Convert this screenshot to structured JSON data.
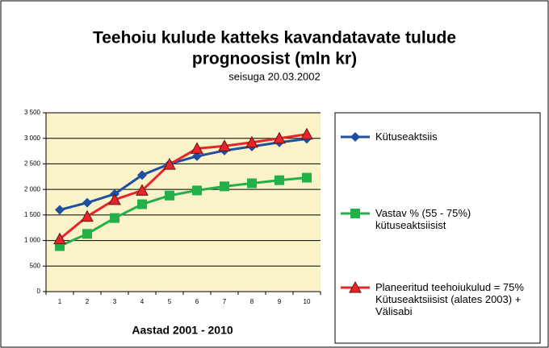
{
  "chart_data": {
    "type": "line",
    "title": "Teehoiu kulude katteks kavandatavate tulude",
    "title_line2": "prognoosist  (mln kr)",
    "subtitle": "seisuga 20.03.2002",
    "x_label": "Aastad 2001 - 2010",
    "categories": [
      "1",
      "2",
      "3",
      "4",
      "5",
      "6",
      "7",
      "8",
      "9",
      "10"
    ],
    "series": [
      {
        "name": "Kütuseaktsiis",
        "color": "#1f4fa0",
        "marker": "diamond",
        "values": [
          1600,
          1740,
          1910,
          2280,
          2500,
          2650,
          2760,
          2840,
          2920,
          2990
        ]
      },
      {
        "name": "Vastav % (55 - 75%) kütuseaktsiisist",
        "color": "#22b04a",
        "marker": "square",
        "values": [
          890,
          1130,
          1440,
          1710,
          1880,
          1980,
          2060,
          2120,
          2180,
          2230
        ]
      },
      {
        "name": "Planeeritud teehoiukulud = 75% Kütuseaktsiisist (alates 2003) + Välisabi",
        "color": "#e8232a",
        "marker": "triangle",
        "values": [
          1030,
          1470,
          1800,
          1980,
          2490,
          2800,
          2850,
          2920,
          3000,
          3080
        ]
      }
    ],
    "ylim": [
      0,
      3500
    ],
    "yticks": [
      0,
      {
        "value": 500,
        "label": "500"
      },
      {
        "value": 1000,
        "label": "1 000"
      },
      {
        "value": 1500,
        "label": "1 500"
      },
      {
        "value": 2000,
        "label": "2 000"
      },
      {
        "value": 2500,
        "label": "2 500"
      },
      {
        "value": 3000,
        "label": "3 000"
      },
      {
        "value": 3500,
        "label": "3 500"
      }
    ],
    "grid": true,
    "plot_background": "#faf2c8",
    "legend": "right"
  }
}
